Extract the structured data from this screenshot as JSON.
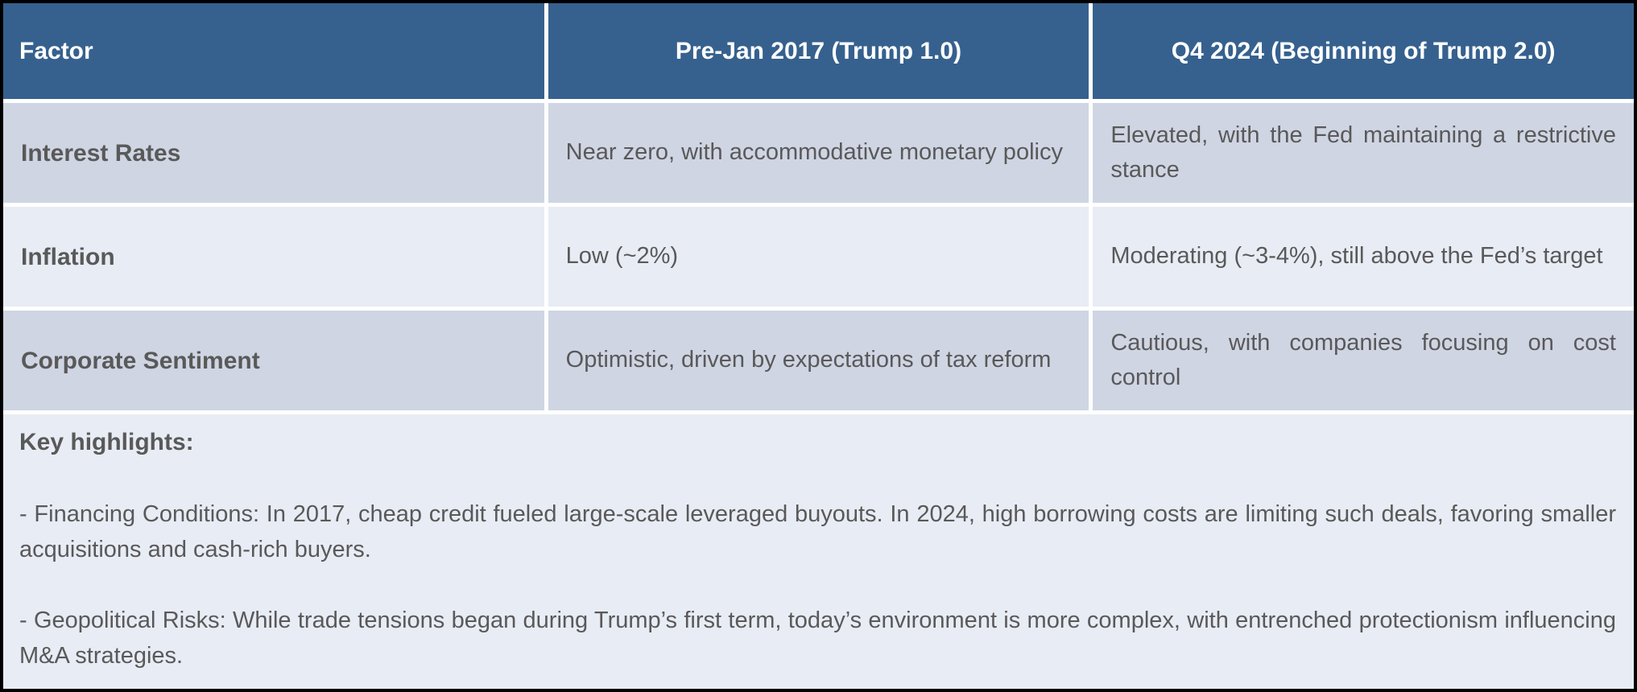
{
  "table": {
    "header": {
      "factor": "Factor",
      "col_trump1": "Pre-Jan 2017 (Trump 1.0)",
      "col_trump2": "Q4 2024 (Beginning of Trump 2.0)"
    },
    "rows": [
      {
        "factor": "Interest Rates",
        "trump1": "Near zero, with accommodative monetary policy",
        "trump2": "Elevated, with the Fed maintaining a restrictive stance"
      },
      {
        "factor": "Inflation",
        "trump1": "Low (~2%)",
        "trump2": "Moderating (~3-4%), still above the Fed’s target"
      },
      {
        "factor": "Corporate Sentiment",
        "trump1": "Optimistic, driven by expectations of tax reform",
        "trump2": "Cautious, with companies focusing on cost control"
      }
    ],
    "highlights": {
      "title": "Key highlights:",
      "items": [
        "- Financing Conditions: In 2017, cheap credit fueled large-scale leveraged buyouts. In 2024, high borrowing costs are limiting such deals, favoring smaller acquisitions and cash-rich buyers.",
        "- Geopolitical Risks: While trade tensions began during Trump’s first term, today’s environment is more complex, with entrenched protectionism influencing M&A strategies."
      ]
    },
    "colors": {
      "header_bg": "#36618E",
      "header_text": "#FFFFFF",
      "row_dark_bg": "#CFD5E3",
      "row_light_bg": "#E8ECF5",
      "body_text": "#595959",
      "outer_border": "#000000",
      "cell_gap": "#FFFFFF"
    }
  }
}
